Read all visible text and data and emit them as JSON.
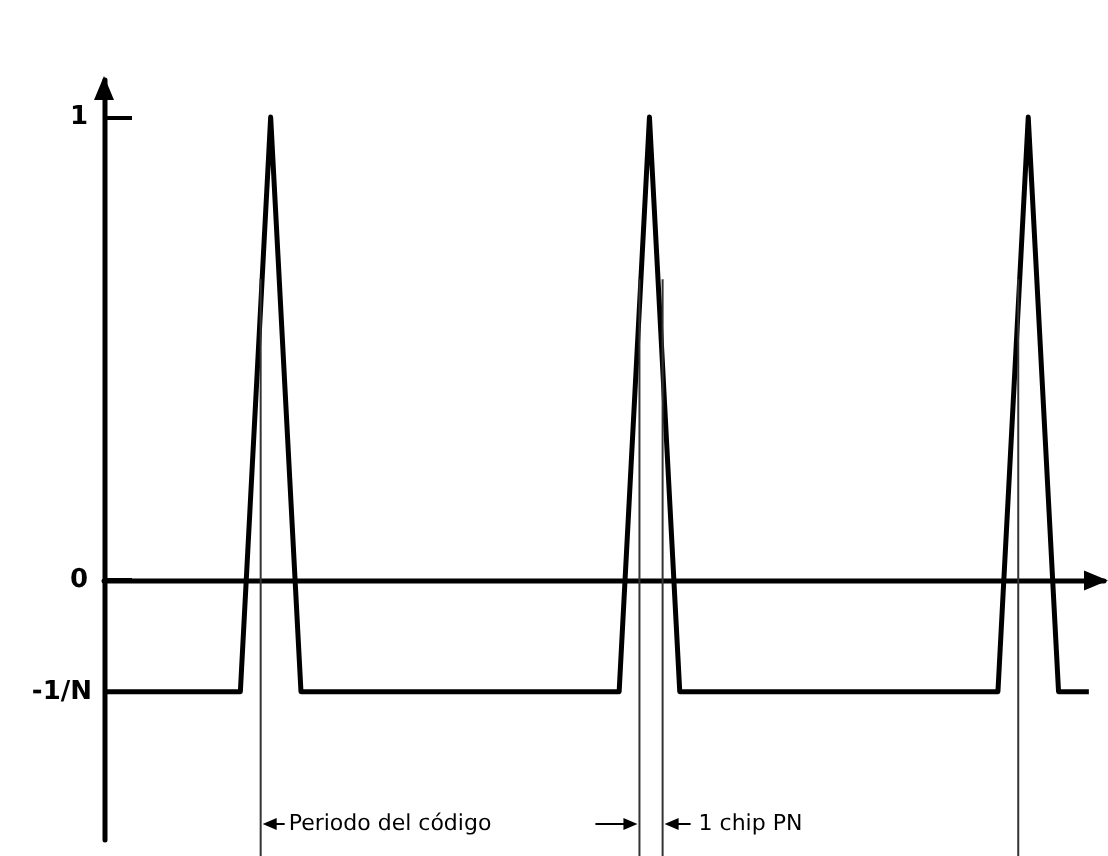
{
  "chart_data": {
    "type": "line",
    "categories": [
      null,
      null,
      null,
      null,
      null,
      null,
      null,
      null,
      null,
      null,
      null,
      null,
      null,
      null,
      null,
      null,
      null,
      null,
      null,
      null,
      null,
      null,
      null,
      null,
      null,
      null,
      null,
      null,
      null,
      null,
      null,
      null,
      null,
      null,
      null,
      null,
      null,
      null,
      null,
      null,
      null,
      null,
      null,
      null,
      null,
      null,
      null,
      null,
      null,
      null,
      null,
      null,
      null,
      null,
      null,
      null,
      null,
      null,
      null,
      null,
      null,
      null,
      null,
      null,
      null,
      null,
      null
    ],
    "series": [
      {
        "color": "#000000",
        "values": [
          -0.24,
          -0.24,
          -0.24,
          -0.24,
          -0.24,
          -0.24,
          -0.24,
          -0.24,
          -0.24,
          -0.24,
          0.38,
          1,
          0.38,
          -0.24,
          -0.24,
          -0.24,
          -0.24,
          -0.24,
          -0.24,
          -0.24,
          -0.24,
          -0.24,
          -0.24,
          -0.24,
          -0.24,
          -0.24,
          -0.24,
          -0.24,
          -0.24,
          -0.24,
          -0.24,
          -0.24,
          -0.24,
          -0.24,
          -0.24,
          0.38,
          1,
          0.38,
          -0.24,
          -0.24,
          -0.24,
          -0.24,
          -0.24,
          -0.24,
          -0.24,
          -0.24,
          -0.24,
          -0.24,
          -0.24,
          -0.24,
          -0.24,
          -0.24,
          -0.24,
          -0.24,
          -0.24,
          -0.24,
          -0.24,
          -0.24,
          -0.24,
          -0.24,
          0.38,
          1,
          0.38,
          -0.24,
          -0.24,
          -0.24,
          null
        ]
      }
    ],
    "ylim": [
      -0.56,
      1.08
    ],
    "yticks": [
      0,
      1
    ],
    "tick_labels": "y",
    "grid": false,
    "line_style": "solid",
    "annotations": [
      "-1/N",
      "Periodo del código",
      "1 chip PN"
    ]
  }
}
